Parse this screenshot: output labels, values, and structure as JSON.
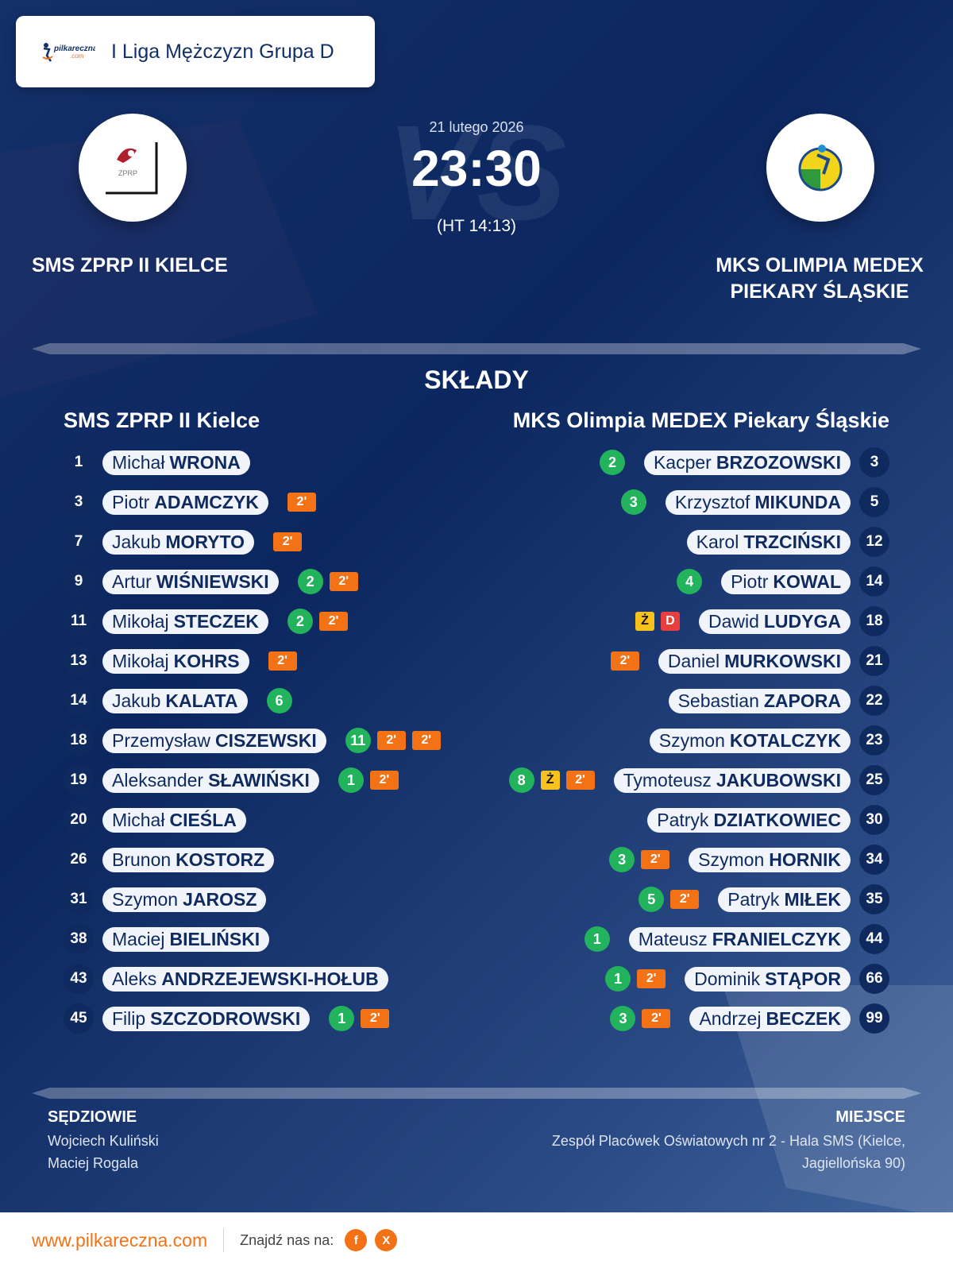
{
  "header": {
    "league": "I Liga Mężczyzn Grupa D",
    "logo_text": "pilkareczna.com"
  },
  "match": {
    "date": "21 lutego 2026",
    "score": "23:30",
    "halftime": "(HT 14:13)",
    "vs": "VS",
    "home": {
      "name": "SMS ZPRP II KIELCE",
      "logo_text": "ZPRP"
    },
    "away": {
      "name_line1": "MKS OLIMPIA MEDEX",
      "name_line2": "PIEKARY ŚLĄSKIE"
    }
  },
  "lineups": {
    "title": "SKŁADY",
    "home_team": "SMS ZPRP II Kielce",
    "away_team": "MKS Olimpia MEDEX Piekary Śląskie",
    "home": [
      {
        "num": "1",
        "first": "Michał",
        "last": "WRONA",
        "events": []
      },
      {
        "num": "3",
        "first": "Piotr",
        "last": "ADAMCZYK",
        "events": [
          {
            "t": "c2",
            "v": "2'"
          }
        ]
      },
      {
        "num": "7",
        "first": "Jakub",
        "last": "MORYTO",
        "events": [
          {
            "t": "c2",
            "v": "2'"
          }
        ]
      },
      {
        "num": "9",
        "first": "Artur",
        "last": "WIŚNIEWSKI",
        "events": [
          {
            "t": "goal",
            "v": "2"
          },
          {
            "t": "c2",
            "v": "2'"
          }
        ]
      },
      {
        "num": "11",
        "first": "Mikołaj",
        "last": "STECZEK",
        "events": [
          {
            "t": "goal",
            "v": "2"
          },
          {
            "t": "c2",
            "v": "2'"
          }
        ]
      },
      {
        "num": "13",
        "first": "Mikołaj",
        "last": "KOHRS",
        "events": [
          {
            "t": "c2",
            "v": "2'"
          }
        ]
      },
      {
        "num": "14",
        "first": "Jakub",
        "last": "KALATA",
        "events": [
          {
            "t": "goal",
            "v": "6"
          }
        ]
      },
      {
        "num": "18",
        "first": "Przemysław",
        "last": "CISZEWSKI",
        "events": [
          {
            "t": "goal",
            "v": "11"
          },
          {
            "t": "c2",
            "v": "2'"
          },
          {
            "t": "c2",
            "v": "2'"
          }
        ]
      },
      {
        "num": "19",
        "first": "Aleksander",
        "last": "SŁAWIŃSKI",
        "events": [
          {
            "t": "goal",
            "v": "1"
          },
          {
            "t": "c2",
            "v": "2'"
          }
        ]
      },
      {
        "num": "20",
        "first": "Michał",
        "last": "CIEŚLA",
        "events": []
      },
      {
        "num": "26",
        "first": "Brunon",
        "last": "KOSTORZ",
        "events": []
      },
      {
        "num": "31",
        "first": "Szymon",
        "last": "JAROSZ",
        "events": []
      },
      {
        "num": "38",
        "first": "Maciej",
        "last": "BIELIŃSKI",
        "events": []
      },
      {
        "num": "43",
        "first": "Aleks",
        "last": "ANDRZEJEWSKI-HOŁUB",
        "events": []
      },
      {
        "num": "45",
        "first": "Filip",
        "last": "SZCZODROWSKI",
        "events": [
          {
            "t": "goal",
            "v": "1"
          },
          {
            "t": "c2",
            "v": "2'"
          }
        ]
      }
    ],
    "away": [
      {
        "num": "3",
        "first": "Kacper",
        "last": "BRZOZOWSKI",
        "events": [
          {
            "t": "goal",
            "v": "2"
          }
        ]
      },
      {
        "num": "5",
        "first": "Krzysztof",
        "last": "MIKUNDA",
        "events": [
          {
            "t": "goal",
            "v": "3"
          }
        ]
      },
      {
        "num": "12",
        "first": "Karol",
        "last": "TRZCIŃSKI",
        "events": []
      },
      {
        "num": "14",
        "first": "Piotr",
        "last": "KOWAL",
        "events": [
          {
            "t": "goal",
            "v": "4"
          }
        ]
      },
      {
        "num": "18",
        "first": "Dawid",
        "last": "LUDYGA",
        "events": [
          {
            "t": "cz",
            "v": "Ż"
          },
          {
            "t": "cd",
            "v": "D"
          }
        ]
      },
      {
        "num": "21",
        "first": "Daniel",
        "last": "MURKOWSKI",
        "events": [
          {
            "t": "c2",
            "v": "2'"
          }
        ]
      },
      {
        "num": "22",
        "first": "Sebastian",
        "last": "ZAPORA",
        "events": []
      },
      {
        "num": "23",
        "first": "Szymon",
        "last": "KOTALCZYK",
        "events": []
      },
      {
        "num": "25",
        "first": "Tymoteusz",
        "last": "JAKUBOWSKI",
        "events": [
          {
            "t": "goal",
            "v": "8"
          },
          {
            "t": "cz",
            "v": "Ż"
          },
          {
            "t": "c2",
            "v": "2'"
          }
        ]
      },
      {
        "num": "30",
        "first": "Patryk",
        "last": "DZIATKOWIEC",
        "events": []
      },
      {
        "num": "34",
        "first": "Szymon",
        "last": "HORNIK",
        "events": [
          {
            "t": "goal",
            "v": "3"
          },
          {
            "t": "c2",
            "v": "2'"
          }
        ]
      },
      {
        "num": "35",
        "first": "Patryk",
        "last": "MIŁEK",
        "events": [
          {
            "t": "goal",
            "v": "5"
          },
          {
            "t": "c2",
            "v": "2'"
          }
        ]
      },
      {
        "num": "44",
        "first": "Mateusz",
        "last": "FRANIELCZYK",
        "events": [
          {
            "t": "goal",
            "v": "1"
          }
        ]
      },
      {
        "num": "66",
        "first": "Dominik",
        "last": "STĄPOR",
        "events": [
          {
            "t": "goal",
            "v": "1"
          },
          {
            "t": "c2",
            "v": "2'"
          }
        ]
      },
      {
        "num": "99",
        "first": "Andrzej",
        "last": "BECZEK",
        "events": [
          {
            "t": "goal",
            "v": "3"
          },
          {
            "t": "c2",
            "v": "2'"
          }
        ]
      }
    ]
  },
  "officials": {
    "title": "SĘDZIOWIE",
    "names": [
      "Wojciech Kuliński",
      "Maciej Rogala"
    ]
  },
  "venue": {
    "title": "MIEJSCE",
    "line1": "Zespół Placówek Oświatowych nr 2 - Hala SMS (Kielce,",
    "line2": "Jagiellońska 90)"
  },
  "footer": {
    "url": "www.pilkareczna.com",
    "find_us": "Znajdź nas na:",
    "social": [
      {
        "icon": "facebook-icon",
        "label": "f"
      },
      {
        "icon": "x-icon",
        "label": "X"
      }
    ]
  },
  "colors": {
    "accent": "#f47216",
    "goal": "#22b35c",
    "navy": "#0e2a5f",
    "yellow": "#f7c21c",
    "red": "#e83e3e"
  }
}
